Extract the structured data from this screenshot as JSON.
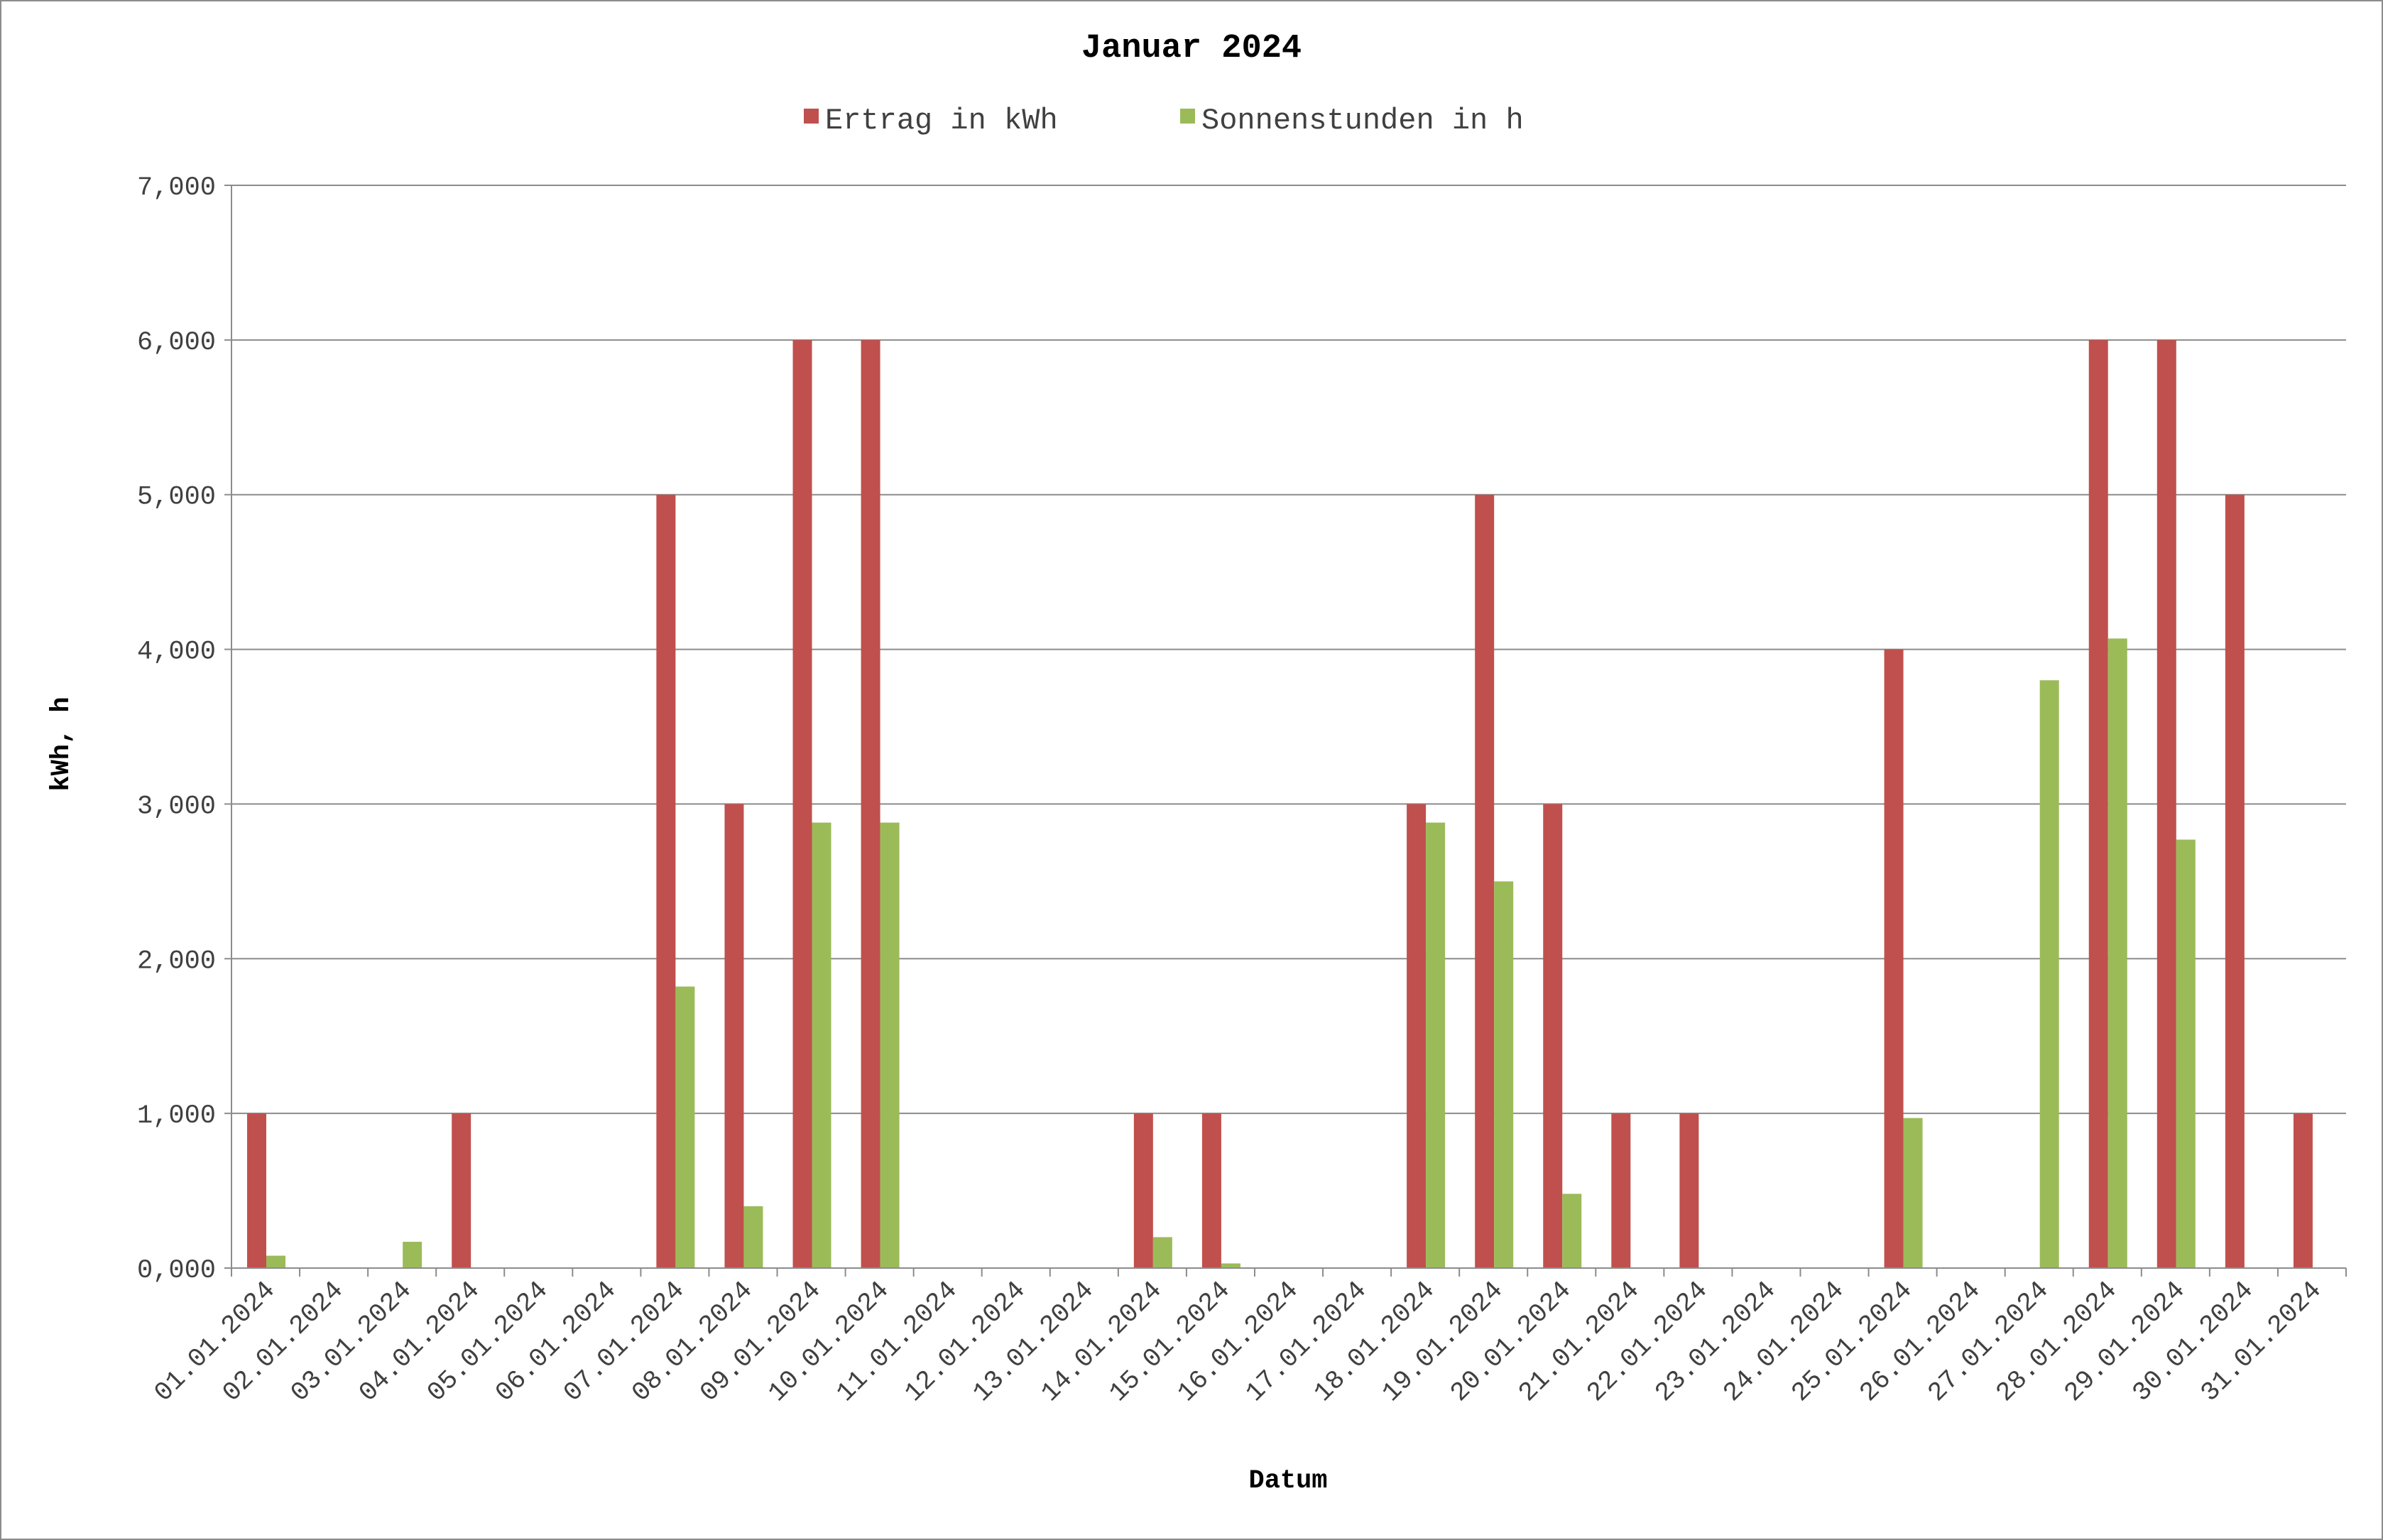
{
  "chart_data": {
    "type": "bar",
    "title": "Januar 2024",
    "xlabel": "Datum",
    "ylabel": "kWh, h",
    "ylim": [
      0,
      7
    ],
    "yticks": [
      "0,000",
      "1,000",
      "2,000",
      "3,000",
      "4,000",
      "5,000",
      "6,000",
      "7,000"
    ],
    "grid": true,
    "legend_position": "top",
    "categories": [
      "01.01.2024",
      "02.01.2024",
      "03.01.2024",
      "04.01.2024",
      "05.01.2024",
      "06.01.2024",
      "07.01.2024",
      "08.01.2024",
      "09.01.2024",
      "10.01.2024",
      "11.01.2024",
      "12.01.2024",
      "13.01.2024",
      "14.01.2024",
      "15.01.2024",
      "16.01.2024",
      "17.01.2024",
      "18.01.2024",
      "19.01.2024",
      "20.01.2024",
      "21.01.2024",
      "22.01.2024",
      "23.01.2024",
      "24.01.2024",
      "25.01.2024",
      "26.01.2024",
      "27.01.2024",
      "28.01.2024",
      "29.01.2024",
      "30.01.2024",
      "31.01.2024"
    ],
    "series": [
      {
        "name": "Ertrag in kWh",
        "color": "#c0504d",
        "values": [
          1,
          0,
          0,
          1,
          0,
          0,
          5,
          3,
          6,
          6,
          0,
          0,
          0,
          1,
          1,
          0,
          0,
          3,
          5,
          3,
          1,
          1,
          0,
          0,
          4,
          0,
          0,
          6,
          6,
          5,
          1
        ]
      },
      {
        "name": "Sonnenstunden in h",
        "color": "#9bbb59",
        "values": [
          0.08,
          0,
          0.17,
          0,
          0,
          0,
          1.82,
          0.4,
          2.88,
          2.88,
          0,
          0,
          0,
          0.2,
          0.03,
          0,
          0,
          2.88,
          2.5,
          0.48,
          0,
          0,
          0,
          0,
          0.97,
          0,
          3.8,
          4.07,
          2.77,
          0,
          0
        ]
      }
    ]
  }
}
